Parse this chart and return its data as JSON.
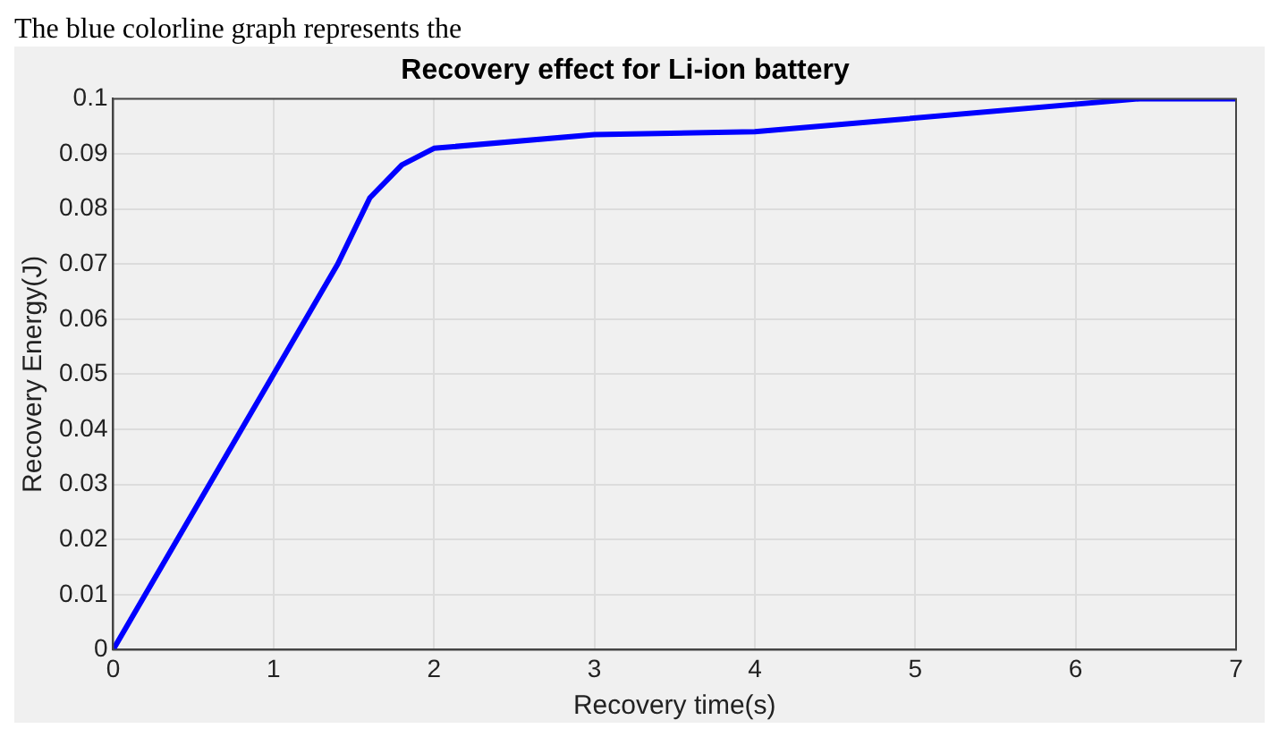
{
  "chart_data": {
    "type": "line",
    "title": "Recovery effect for Li-ion battery",
    "xlabel": "Recovery time(s)",
    "ylabel": "Recovery Energy(J)",
    "annotations": [
      "The blue colorline graph represents the"
    ],
    "x": [
      0,
      1,
      1.4,
      1.6,
      1.8,
      2,
      3,
      4,
      6.4,
      7
    ],
    "series": [
      {
        "color": "#0000ff",
        "values": [
          0,
          0.05,
          0.07,
          0.082,
          0.088,
          0.091,
          0.0935,
          0.094,
          0.1,
          0.1
        ]
      }
    ],
    "xlim": [
      0,
      7
    ],
    "xticks": [
      0,
      1,
      2,
      3,
      4,
      5,
      6,
      7
    ],
    "ylim": [
      0,
      0.1
    ],
    "yticks": [
      0,
      0.01,
      0.02,
      0.03,
      0.04,
      0.05,
      0.06,
      0.07,
      0.08,
      0.09,
      0.1
    ],
    "grid": true,
    "legend": false,
    "marker": "none",
    "line_style": "solid"
  }
}
